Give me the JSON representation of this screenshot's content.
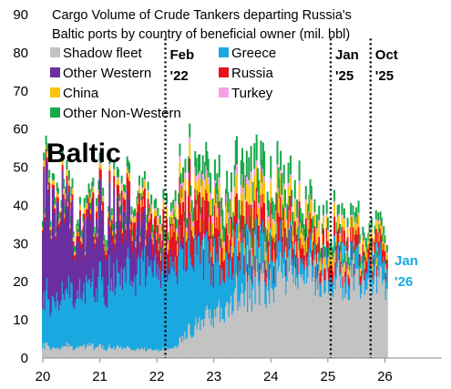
{
  "chart_data": {
    "type": "bar",
    "stacked": true,
    "title_lines": [
      "Cargo Volume of Crude Tankers departing Russia's",
      "Baltic ports by country of beneficial owner (mil. bbl)"
    ],
    "region_label": "Baltic",
    "ylim": [
      0,
      90
    ],
    "y_ticks": [
      "0",
      "10",
      "20",
      "30",
      "40",
      "50",
      "60",
      "70",
      "80",
      "90"
    ],
    "x_ticks": [
      "20",
      "21",
      "22",
      "23",
      "24",
      "25",
      "26"
    ],
    "xlim": [
      2020,
      2027
    ],
    "grid": false,
    "legend_position": "top-left",
    "series": [
      {
        "name": "Shadow fleet",
        "color": "#c3c3c3"
      },
      {
        "name": "Greece",
        "color": "#1aa8e0"
      },
      {
        "name": "Other Western",
        "color": "#6b2fa0"
      },
      {
        "name": "Russia",
        "color": "#e8141c"
      },
      {
        "name": "China",
        "color": "#fcc30c"
      },
      {
        "name": "Turkey",
        "color": "#f6a0e6"
      },
      {
        "name": "Other Non-Western",
        "color": "#17a848"
      }
    ],
    "legend_order": [
      "Shadow fleet",
      "Greece",
      "Other Western",
      "Russia",
      "China",
      "Turkey",
      "Other Non-Western"
    ],
    "events": [
      {
        "x": 2022.15,
        "label_lines": [
          "Feb",
          "'22"
        ]
      },
      {
        "x": 2025.05,
        "label_lines": [
          "Jan",
          "'25"
        ]
      },
      {
        "x": 2025.75,
        "label_lines": [
          "Oct",
          "'25"
        ]
      }
    ],
    "end_label_lines": [
      "Jan",
      "'26"
    ],
    "weekly": {
      "start": 2020.0,
      "count": 315,
      "Shadow fleet": [
        [
          2020.0,
          3
        ],
        [
          2021.0,
          3
        ],
        [
          2022.0,
          2
        ],
        [
          2022.3,
          3
        ],
        [
          2022.6,
          7
        ],
        [
          2023.0,
          12
        ],
        [
          2023.5,
          18
        ],
        [
          2024.0,
          21
        ],
        [
          2024.5,
          24
        ],
        [
          2025.0,
          22
        ],
        [
          2025.8,
          20
        ],
        [
          2026.1,
          19
        ]
      ],
      "Greece": [
        [
          2020.0,
          12
        ],
        [
          2020.5,
          14
        ],
        [
          2021.0,
          16
        ],
        [
          2021.5,
          19
        ],
        [
          2022.0,
          22
        ],
        [
          2022.3,
          23
        ],
        [
          2022.6,
          21
        ],
        [
          2023.0,
          15
        ],
        [
          2023.5,
          11
        ],
        [
          2024.0,
          8
        ],
        [
          2024.5,
          5
        ],
        [
          2025.0,
          4
        ],
        [
          2025.8,
          5
        ],
        [
          2026.1,
          5
        ]
      ],
      "Other Western": [
        [
          2020.0,
          30
        ],
        [
          2020.3,
          25
        ],
        [
          2020.6,
          15
        ],
        [
          2021.0,
          17
        ],
        [
          2021.5,
          13
        ],
        [
          2022.0,
          5
        ],
        [
          2022.2,
          2
        ],
        [
          2022.5,
          1
        ],
        [
          2023.0,
          0.5
        ],
        [
          2024.0,
          0.3
        ],
        [
          2026.1,
          0.2
        ]
      ],
      "Russia": [
        [
          2020.0,
          1
        ],
        [
          2021.0,
          2
        ],
        [
          2021.6,
          4
        ],
        [
          2022.0,
          4
        ],
        [
          2022.3,
          8
        ],
        [
          2022.6,
          10
        ],
        [
          2023.0,
          8
        ],
        [
          2023.5,
          6
        ],
        [
          2024.0,
          6
        ],
        [
          2024.5,
          5
        ],
        [
          2025.0,
          4
        ],
        [
          2025.8,
          3
        ],
        [
          2026.1,
          3
        ]
      ],
      "China": [
        [
          2020.0,
          1
        ],
        [
          2021.0,
          1
        ],
        [
          2022.0,
          1.5
        ],
        [
          2022.4,
          3
        ],
        [
          2023.0,
          4
        ],
        [
          2023.5,
          5
        ],
        [
          2024.0,
          5
        ],
        [
          2024.5,
          4
        ],
        [
          2025.0,
          3
        ],
        [
          2025.8,
          2
        ],
        [
          2026.1,
          2
        ]
      ],
      "Turkey": [
        [
          2020.0,
          0.2
        ],
        [
          2022.0,
          0.5
        ],
        [
          2022.5,
          1.5
        ],
        [
          2023.3,
          2
        ],
        [
          2024.0,
          1
        ],
        [
          2025.0,
          0.5
        ],
        [
          2026.1,
          0.3
        ]
      ],
      "Other Non-Western": [
        [
          2020.0,
          2
        ],
        [
          2021.0,
          2
        ],
        [
          2022.0,
          2
        ],
        [
          2022.5,
          3
        ],
        [
          2023.0,
          5
        ],
        [
          2023.5,
          6
        ],
        [
          2024.0,
          5
        ],
        [
          2024.5,
          4
        ],
        [
          2025.0,
          3
        ],
        [
          2025.8,
          2
        ],
        [
          2026.1,
          2
        ]
      ]
    }
  }
}
